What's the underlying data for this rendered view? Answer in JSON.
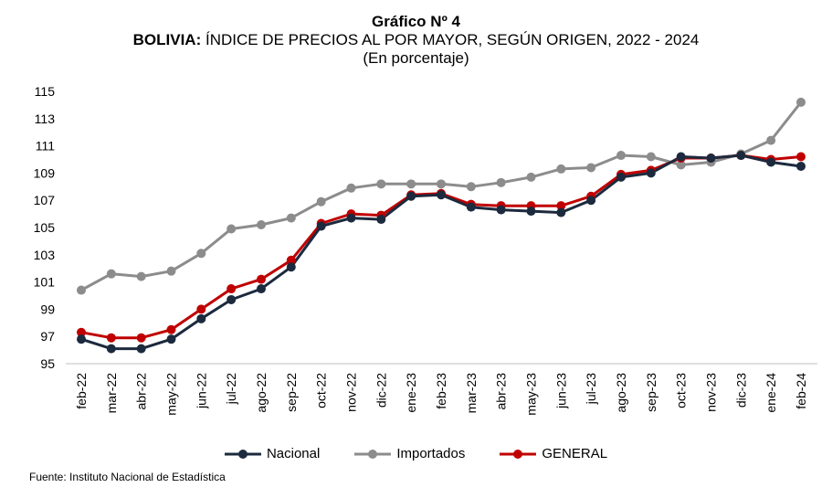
{
  "title": {
    "line1": "Gráfico Nº 4",
    "line2_bold": "BOLIVIA:",
    "line2_rest": " ÍNDICE DE PRECIOS AL POR MAYOR, SEGÚN ORIGEN, 2022 - 2024",
    "line3": "(En porcentaje)"
  },
  "source": "Fuente: Instituto Nacional de Estadística",
  "colors": {
    "nacional": "#1c2a3e",
    "importados": "#8c8c8c",
    "general": "#c00000"
  },
  "chart_data": {
    "type": "line",
    "title": "BOLIVIA: ÍNDICE DE PRECIOS AL POR MAYOR, SEGÚN ORIGEN, 2022 - 2024",
    "categories": [
      "feb-22",
      "mar-22",
      "abr-22",
      "may-22",
      "jun-22",
      "jul-22",
      "ago-22",
      "sep-22",
      "oct-22",
      "nov-22",
      "dic-22",
      "ene-23",
      "feb-23",
      "mar-23",
      "abr-23",
      "may-23",
      "jun-23",
      "jul-23",
      "ago-23",
      "sep-23",
      "oct-23",
      "nov-23",
      "dic-23",
      "ene-24",
      "feb-24"
    ],
    "y_ticks": [
      95,
      97,
      99,
      101,
      103,
      105,
      107,
      109,
      111,
      113,
      115
    ],
    "ylim": [
      95,
      115
    ],
    "grid": false,
    "legend_position": "bottom",
    "series": [
      {
        "name": "Nacional",
        "color": "#1c2a3e",
        "values": [
          96.8,
          96.1,
          96.1,
          96.8,
          98.3,
          99.7,
          100.5,
          102.1,
          105.1,
          105.7,
          105.6,
          107.3,
          107.4,
          106.5,
          106.3,
          106.2,
          106.1,
          107.0,
          108.7,
          109.0,
          110.2,
          110.1,
          110.3,
          109.8,
          109.5
        ]
      },
      {
        "name": "Importados",
        "color": "#8c8c8c",
        "values": [
          100.4,
          101.6,
          101.4,
          101.8,
          103.1,
          104.9,
          105.2,
          105.7,
          106.9,
          107.9,
          108.2,
          108.2,
          108.2,
          108.0,
          108.3,
          108.7,
          109.3,
          109.4,
          110.3,
          110.2,
          109.6,
          109.8,
          110.4,
          111.4,
          114.2
        ]
      },
      {
        "name": "GENERAL",
        "color": "#c00000",
        "values": [
          97.3,
          96.9,
          96.9,
          97.5,
          99.0,
          100.5,
          101.2,
          102.6,
          105.3,
          106.0,
          105.9,
          107.4,
          107.5,
          106.7,
          106.6,
          106.6,
          106.6,
          107.3,
          108.9,
          109.2,
          110.1,
          110.1,
          110.3,
          110.0,
          110.2
        ]
      }
    ]
  }
}
